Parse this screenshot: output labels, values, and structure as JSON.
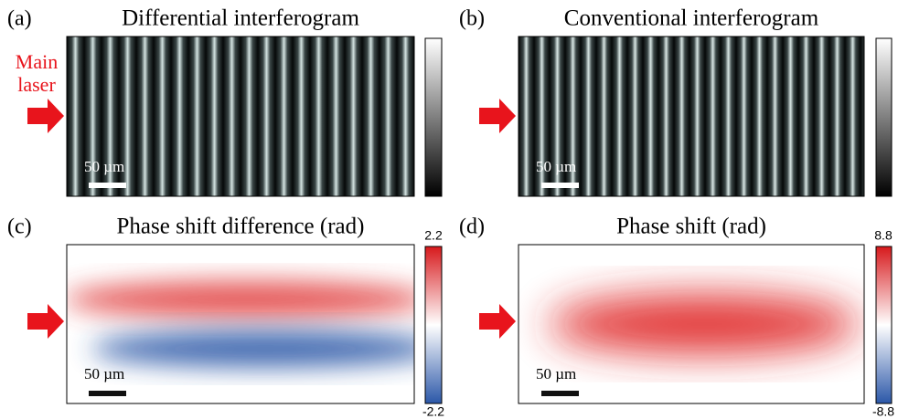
{
  "annotation": {
    "line1": "Main",
    "line2": "laser"
  },
  "panels": [
    {
      "label": "(a)",
      "title": "Differential interferogram",
      "scalebar": "50 µm"
    },
    {
      "label": "(b)",
      "title": "Conventional interferogram",
      "scalebar": "50 µm"
    },
    {
      "label": "(c)",
      "title": "Phase shift difference (rad)",
      "scalebar": "50 µm",
      "colorbar": {
        "max": "2.2",
        "min": "-2.2"
      }
    },
    {
      "label": "(d)",
      "title": "Phase shift (rad)",
      "scalebar": "50 µm",
      "colorbar": {
        "max": "8.8",
        "min": "-8.8"
      }
    }
  ]
}
